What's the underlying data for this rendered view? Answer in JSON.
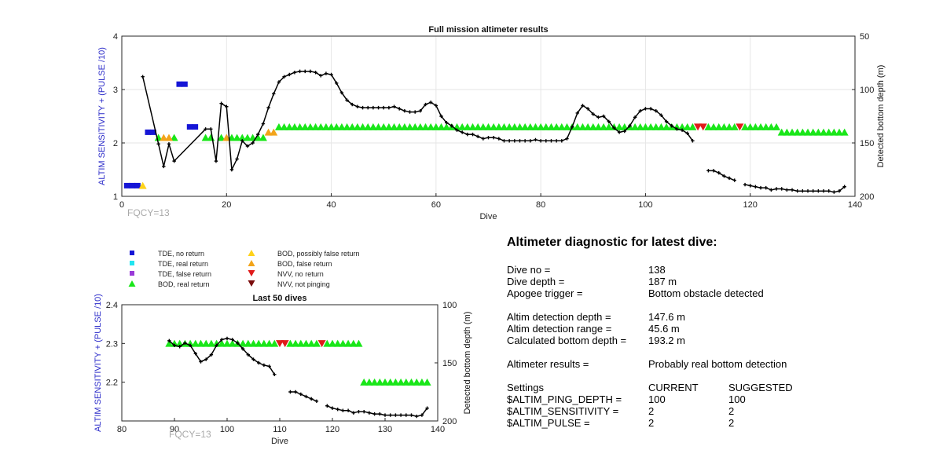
{
  "colors": {
    "tde_no_return": "#1515d6",
    "tde_real_return": "#21e5f0",
    "tde_false_return": "#9a3ad8",
    "bod_real_return": "#19e619",
    "bod_possibly_false": "#ffd21a",
    "bod_false": "#f2a41a",
    "nvv_no_return": "#e01a1a",
    "nvv_not_pinging": "#7a0c0c",
    "depth_line": "#000000",
    "left_axis_label": "#2b2bc9",
    "fqcy": "#a9a9a9"
  },
  "chart_data": [
    {
      "type": "scatter",
      "title": "Full mission altimeter results",
      "xlabel": "Dive",
      "ylabel": "ALTIM SENSITIVITY + (PULSE /10)",
      "y2label": "Detected bottom depth (m)",
      "xlim": [
        0,
        140
      ],
      "ylim": [
        1,
        4
      ],
      "y2lim": [
        50,
        200
      ],
      "y2_reversed": true,
      "x_ticks": [
        0,
        20,
        40,
        60,
        80,
        100,
        120,
        140
      ],
      "y_ticks": [
        1,
        2,
        3,
        4
      ],
      "y2_ticks": [
        50,
        100,
        150,
        200
      ],
      "grid": true,
      "annotation": "FQCY=13",
      "tde_no_return": [
        [
          1,
          1.2
        ],
        [
          2,
          1.2
        ],
        [
          3,
          1.2
        ],
        [
          5,
          2.2
        ],
        [
          6,
          2.2
        ],
        [
          11,
          3.1
        ],
        [
          12,
          3.1
        ],
        [
          13,
          2.3
        ],
        [
          14,
          2.3
        ]
      ],
      "bod_possibly_false": [
        [
          4,
          1.2
        ]
      ],
      "bod_false": [
        [
          8,
          2.1
        ],
        [
          9,
          2.1
        ],
        [
          20,
          2.1
        ],
        [
          28,
          2.2
        ],
        [
          29,
          2.2
        ]
      ],
      "bod_real_return": {
        "points": [
          [
            7,
            2.1
          ],
          [
            10,
            2.1
          ],
          [
            16,
            2.1
          ],
          [
            17,
            2.1
          ],
          [
            19,
            2.1
          ],
          [
            21,
            2.1
          ],
          [
            22,
            2.1
          ],
          [
            23,
            2.1
          ],
          [
            24,
            2.1
          ],
          [
            25,
            2.1
          ],
          [
            26,
            2.1
          ],
          [
            27,
            2.1
          ]
        ],
        "ranges": [
          [
            30,
            109,
            2.3
          ],
          [
            112,
            117,
            2.3
          ],
          [
            119,
            125,
            2.3
          ],
          [
            126,
            138,
            2.2
          ]
        ]
      },
      "nvv_no_return": [
        [
          110,
          2.3
        ],
        [
          111,
          2.3
        ],
        [
          118,
          2.3
        ]
      ],
      "bottom_depth": [
        [
          4,
          88
        ],
        [
          7,
          151
        ],
        [
          8,
          172
        ],
        [
          9,
          151
        ],
        [
          10,
          167
        ],
        [
          16,
          137
        ],
        [
          17,
          137
        ],
        [
          18,
          167
        ],
        [
          19,
          113
        ],
        [
          20,
          116
        ],
        [
          21,
          175
        ],
        [
          22,
          165
        ],
        [
          23,
          148
        ],
        [
          24,
          153
        ],
        [
          25,
          150
        ],
        [
          26,
          142
        ],
        [
          27,
          132
        ],
        [
          28,
          117
        ],
        [
          29,
          104
        ],
        [
          30,
          93
        ],
        [
          31,
          88
        ],
        [
          32,
          86
        ],
        [
          33,
          84
        ],
        [
          34,
          83
        ],
        [
          35,
          83
        ],
        [
          36,
          83
        ],
        [
          37,
          84
        ],
        [
          38,
          87
        ],
        [
          39,
          85
        ],
        [
          40,
          86
        ],
        [
          41,
          94
        ],
        [
          42,
          103
        ],
        [
          43,
          110
        ],
        [
          44,
          114
        ],
        [
          45,
          116
        ],
        [
          46,
          117
        ],
        [
          47,
          117
        ],
        [
          48,
          117
        ],
        [
          49,
          117
        ],
        [
          50,
          117
        ],
        [
          51,
          117
        ],
        [
          52,
          116
        ],
        [
          53,
          118
        ],
        [
          54,
          120
        ],
        [
          55,
          121
        ],
        [
          56,
          121
        ],
        [
          57,
          120
        ],
        [
          58,
          114
        ],
        [
          59,
          112
        ],
        [
          60,
          115
        ],
        [
          61,
          125
        ],
        [
          62,
          131
        ],
        [
          63,
          134
        ],
        [
          64,
          138
        ],
        [
          65,
          140
        ],
        [
          66,
          142
        ],
        [
          67,
          142
        ],
        [
          68,
          144
        ],
        [
          69,
          146
        ],
        [
          70,
          145
        ],
        [
          71,
          145
        ],
        [
          72,
          146
        ],
        [
          73,
          148
        ],
        [
          74,
          148
        ],
        [
          75,
          148
        ],
        [
          76,
          148
        ],
        [
          77,
          148
        ],
        [
          78,
          148
        ],
        [
          79,
          147
        ],
        [
          80,
          148
        ],
        [
          81,
          148
        ],
        [
          82,
          148
        ],
        [
          83,
          148
        ],
        [
          84,
          148
        ],
        [
          85,
          146
        ],
        [
          86,
          135
        ],
        [
          87,
          122
        ],
        [
          88,
          115
        ],
        [
          89,
          118
        ],
        [
          90,
          123
        ],
        [
          91,
          126
        ],
        [
          92,
          125
        ],
        [
          93,
          130
        ],
        [
          94,
          136
        ],
        [
          95,
          140
        ],
        [
          96,
          139
        ],
        [
          97,
          134
        ],
        [
          98,
          126
        ],
        [
          99,
          120
        ],
        [
          100,
          118
        ],
        [
          101,
          118
        ],
        [
          102,
          120
        ],
        [
          103,
          124
        ],
        [
          104,
          130
        ],
        [
          105,
          134
        ],
        [
          106,
          137
        ],
        [
          107,
          138
        ],
        [
          108,
          141
        ],
        [
          109,
          148
        ],
        null,
        [
          112,
          176
        ],
        [
          113,
          176
        ],
        [
          114,
          178
        ],
        [
          115,
          181
        ],
        [
          116,
          183
        ],
        [
          117,
          185
        ],
        null,
        [
          119,
          189
        ],
        [
          120,
          190
        ],
        [
          121,
          191
        ],
        [
          122,
          192
        ],
        [
          123,
          192
        ],
        [
          124,
          194
        ],
        [
          125,
          193
        ],
        [
          126,
          193
        ],
        [
          127,
          194
        ],
        [
          128,
          194
        ],
        [
          129,
          195
        ],
        [
          130,
          195
        ],
        [
          131,
          195
        ],
        [
          132,
          195
        ],
        [
          133,
          195
        ],
        [
          134,
          195
        ],
        [
          135,
          195
        ],
        [
          136,
          196
        ],
        [
          137,
          195
        ],
        [
          138,
          191
        ]
      ]
    },
    {
      "type": "scatter",
      "title": "Last 50 dives",
      "xlabel": "Dive",
      "ylabel": "ALTIM SENSITIVITY + (PULSE /10)",
      "y2label": "Detected bottom depth (m)",
      "xlim": [
        80,
        140
      ],
      "ylim": [
        2.1,
        2.4
      ],
      "y2lim": [
        100,
        200
      ],
      "y2_reversed": true,
      "x_ticks": [
        80,
        90,
        100,
        110,
        120,
        130,
        140
      ],
      "y_ticks": [
        2.2,
        2.3,
        2.4
      ],
      "y2_ticks": [
        100,
        150,
        200
      ],
      "grid": false,
      "annotation": "FQCY=13",
      "bod_real_return": {
        "ranges": [
          [
            89,
            109,
            2.3
          ],
          [
            112,
            117,
            2.3
          ],
          [
            119,
            125,
            2.3
          ],
          [
            126,
            138,
            2.2
          ]
        ]
      },
      "nvv_no_return": [
        [
          110,
          2.3
        ],
        [
          111,
          2.3
        ],
        [
          118,
          2.3
        ]
      ],
      "bottom_depth": [
        [
          89,
          131
        ],
        [
          90,
          135
        ],
        [
          91,
          136
        ],
        [
          92,
          133
        ],
        [
          93,
          135
        ],
        [
          94,
          142
        ],
        [
          95,
          149
        ],
        [
          96,
          147
        ],
        [
          97,
          143
        ],
        [
          98,
          135
        ],
        [
          99,
          130
        ],
        [
          100,
          129
        ],
        [
          101,
          130
        ],
        [
          102,
          133
        ],
        [
          103,
          138
        ],
        [
          104,
          143
        ],
        [
          105,
          147
        ],
        [
          106,
          150
        ],
        [
          107,
          152
        ],
        [
          108,
          153
        ],
        [
          109,
          160
        ],
        null,
        [
          112,
          175
        ],
        [
          113,
          175
        ],
        [
          114,
          177
        ],
        [
          115,
          179
        ],
        [
          116,
          181
        ],
        [
          117,
          183
        ],
        null,
        [
          119,
          187
        ],
        [
          120,
          189
        ],
        [
          121,
          190
        ],
        [
          122,
          191
        ],
        [
          123,
          191
        ],
        [
          124,
          193
        ],
        [
          125,
          192
        ],
        [
          126,
          192
        ],
        [
          127,
          193
        ],
        [
          128,
          194
        ],
        [
          129,
          194
        ],
        [
          130,
          195
        ],
        [
          131,
          195
        ],
        [
          132,
          195
        ],
        [
          133,
          195
        ],
        [
          134,
          195
        ],
        [
          135,
          195
        ],
        [
          136,
          196
        ],
        [
          137,
          195
        ],
        [
          138,
          189
        ]
      ]
    }
  ],
  "legend": [
    {
      "label": "TDE, no return",
      "marker": "square",
      "color_key": "tde_no_return"
    },
    {
      "label": "TDE, real return",
      "marker": "square",
      "color_key": "tde_real_return"
    },
    {
      "label": "TDE, false return",
      "marker": "square",
      "color_key": "tde_false_return"
    },
    {
      "label": "BOD, real return",
      "marker": "triangle-up",
      "color_key": "bod_real_return"
    },
    {
      "label": "BOD, possibly false return",
      "marker": "triangle-up",
      "color_key": "bod_possibly_false"
    },
    {
      "label": "BOD, false return",
      "marker": "triangle-up",
      "color_key": "bod_false"
    },
    {
      "label": "NVV, no return",
      "marker": "triangle-down",
      "color_key": "nvv_no_return"
    },
    {
      "label": "NVV, not pinging",
      "marker": "triangle-down",
      "color_key": "nvv_not_pinging"
    }
  ],
  "diagnostic": {
    "title": "Altimeter diagnostic for latest dive:",
    "dive_no_label": "Dive no =",
    "dive_no_value": "138",
    "dive_depth_label": "Dive depth =",
    "dive_depth_value": "187 m",
    "apogee_label": "Apogee trigger =",
    "apogee_value": "Bottom obstacle detected",
    "altim_depth_label": "Altim detection depth =",
    "altim_depth_value": "147.6 m",
    "altim_range_label": "Altim detection range =",
    "altim_range_value": "45.6 m",
    "calc_depth_label": "Calculated bottom depth =",
    "calc_depth_value": "193.2 m",
    "results_label": "Altimeter results =",
    "results_value": "Probably real bottom detection",
    "settings_label": "Settings",
    "current_label": "CURRENT",
    "suggested_label": "SUGGESTED",
    "ping_depth_label": "$ALTIM_PING_DEPTH =",
    "ping_depth_current": "100",
    "ping_depth_suggested": "100",
    "sensitivity_label": "$ALTIM_SENSITIVITY =",
    "sensitivity_current": "2",
    "sensitivity_suggested": "2",
    "pulse_label": "$ALTIM_PULSE =",
    "pulse_current": "2",
    "pulse_suggested": "2"
  }
}
